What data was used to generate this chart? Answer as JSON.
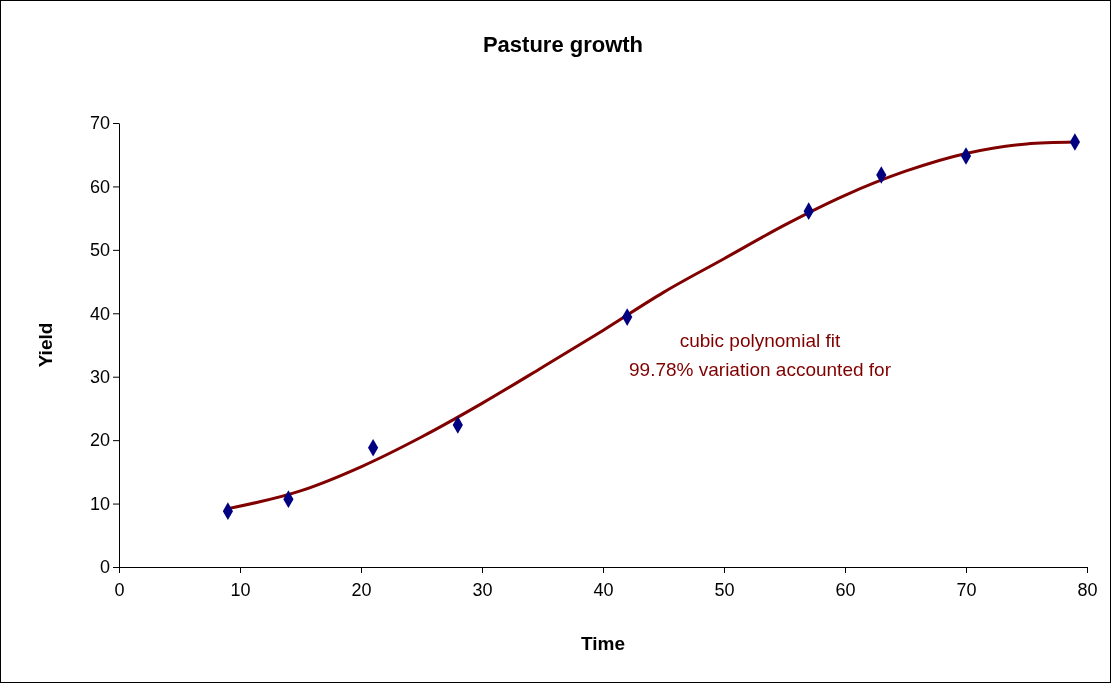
{
  "chart_data": {
    "type": "scatter",
    "title": "Pasture growth",
    "xlabel": "Time",
    "ylabel": "Yield",
    "xlim": [
      0,
      80
    ],
    "xticks": [
      0,
      10,
      20,
      30,
      40,
      50,
      60,
      70,
      80
    ],
    "ylim": [
      0,
      70
    ],
    "yticks": [
      0,
      10,
      20,
      30,
      40,
      50,
      60,
      70
    ],
    "grid": false,
    "marker": "diamond",
    "annotations": [
      "cubic polynomial fit",
      "99.78% variation accounted for"
    ],
    "series": [
      {
        "type": "line",
        "color": "#800000",
        "marker": "none",
        "line_style": "solid",
        "x": [
          9,
          15,
          20,
          25,
          30,
          35,
          40,
          45,
          50,
          55,
          60,
          65,
          70,
          75,
          79
        ],
        "values": [
          9.2,
          12.0,
          15.8,
          20.5,
          25.8,
          31.5,
          37.3,
          43.3,
          48.6,
          53.9,
          58.6,
          62.4,
          65.2,
          66.7,
          67.0
        ]
      },
      {
        "color": "#000080",
        "x": [
          9,
          14,
          21,
          28,
          42,
          57,
          63,
          70,
          79
        ],
        "values": [
          8.8,
          10.7,
          18.8,
          22.4,
          39.4,
          56.1,
          61.8,
          64.8,
          67.0
        ]
      }
    ]
  }
}
